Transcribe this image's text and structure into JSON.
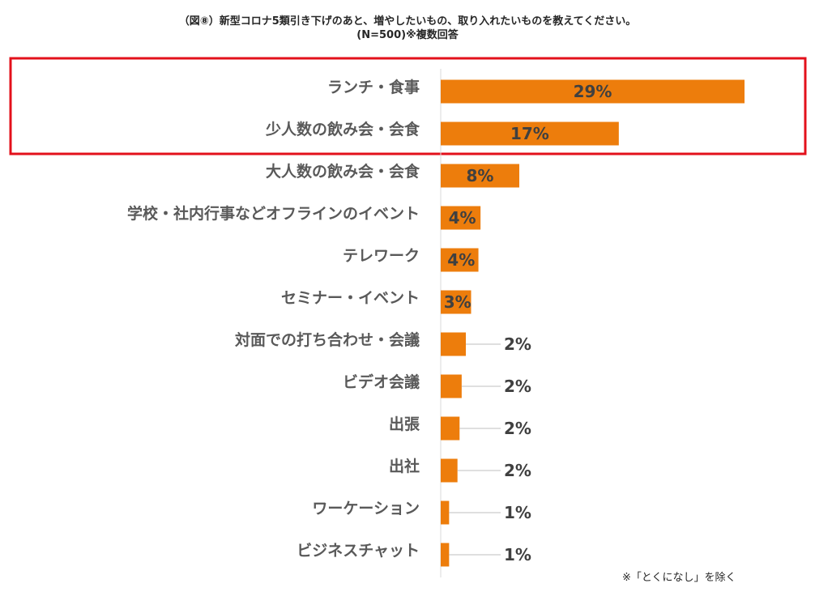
{
  "title": {
    "line1": "（図⑧）新型コロナ5類引き下げのあと、増やしたいもの、取り入れたいものを教えてください。",
    "line2": "(N=500)※複数回答"
  },
  "note": "※「とくになし」を除く",
  "colors": {
    "bar": "#ED7D0C",
    "highlight_box": "#E3101B",
    "leader_line": "#BFBFBF",
    "axis_line": "#D9D9D9"
  },
  "highlight": {
    "from_index": 0,
    "to_index": 1
  },
  "chart_data": {
    "type": "bar",
    "orientation": "horizontal",
    "categories": [
      "ランチ・食事",
      "少人数の飲み会・会食",
      "大人数の飲み会・会食",
      "学校・社内行事などオフラインのイベント",
      "テレワーク",
      "セミナー・イベント",
      "対面での打ち合わせ・会議",
      "ビデオ会議",
      "出張",
      "出社",
      "ワーケーション",
      "ビジネスチャット"
    ],
    "values": [
      29.0,
      17.0,
      7.5,
      3.8,
      3.6,
      2.9,
      2.4,
      2.0,
      1.8,
      1.6,
      0.8,
      0.8
    ],
    "value_labels": [
      "29%",
      "17%",
      "8%",
      "4%",
      "4%",
      "3%",
      "2%",
      "2%",
      "2%",
      "2%",
      "1%",
      "1%"
    ],
    "unit": "%",
    "xlim": [
      0,
      30
    ],
    "grid": false,
    "legend": "none"
  }
}
